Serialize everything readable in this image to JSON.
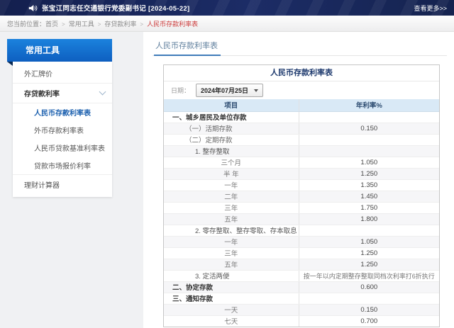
{
  "top_bar": {
    "announcement": "张宝江同志任交通银行党委副书记 [2024-05-22]",
    "more_link": "查看更多>>"
  },
  "breadcrumb": {
    "prefix": "您当前位置：",
    "items": [
      "首页",
      "常用工具",
      "存贷款利率"
    ],
    "separator": ">",
    "current": "人民币存款利率表"
  },
  "sidebar": {
    "title": "常用工具",
    "items": [
      {
        "label": "外汇牌价",
        "type": "top"
      },
      {
        "label": "存贷款利率",
        "type": "top",
        "expanded": true,
        "bold": true
      },
      {
        "label": "人民币存款利率表",
        "type": "sub",
        "active": true
      },
      {
        "label": "外币存款利率表",
        "type": "sub"
      },
      {
        "label": "人民币贷款基准利率表",
        "type": "sub"
      },
      {
        "label": "贷款市场报价利率",
        "type": "sub"
      },
      {
        "label": "理财计算器",
        "type": "top"
      }
    ]
  },
  "content": {
    "page_title": "人民币存款利率表",
    "table": {
      "caption": "人民币存款利率表",
      "date_label": "日期：",
      "date_value": "2024年07月25日",
      "columns": [
        "项目",
        "年利率%"
      ],
      "rows": [
        {
          "item": "一、城乡居民及单位存款",
          "rate": "",
          "level": 1
        },
        {
          "item": "（一）活期存款",
          "rate": "0.150",
          "level": 2
        },
        {
          "item": "（二）定期存款",
          "rate": "",
          "level": 2
        },
        {
          "item": "1. 整存整取",
          "rate": "",
          "level": 3
        },
        {
          "item": "三个月",
          "rate": "1.050",
          "level": 4
        },
        {
          "item": "半 年",
          "rate": "1.250",
          "level": 4
        },
        {
          "item": "一年",
          "rate": "1.350",
          "level": 4
        },
        {
          "item": "二年",
          "rate": "1.450",
          "level": 4
        },
        {
          "item": "三年",
          "rate": "1.750",
          "level": 4
        },
        {
          "item": "五年",
          "rate": "1.800",
          "level": 4
        },
        {
          "item": "2. 零存整取、整存零取、存本取息",
          "rate": "",
          "level": 3
        },
        {
          "item": "一年",
          "rate": "1.050",
          "level": 4
        },
        {
          "item": "三年",
          "rate": "1.250",
          "level": 4
        },
        {
          "item": "五年",
          "rate": "1.250",
          "level": 4
        },
        {
          "item": "3. 定活两便",
          "rate": "按一年以内定期整存整取同档次利率打6折执行",
          "level": 3,
          "note": true
        },
        {
          "item": "二、协定存款",
          "rate": "0.600",
          "level": 1
        },
        {
          "item": "三、通知存款",
          "rate": "",
          "level": 1
        },
        {
          "item": "一天",
          "rate": "0.150",
          "level": 4
        },
        {
          "item": "七天",
          "rate": "0.700",
          "level": 4
        }
      ]
    }
  },
  "colors": {
    "topbar_bg": "#16245a",
    "sidebar_header_blue": "#1177d6",
    "active_link_blue": "#1a5fae",
    "breadcrumb_current_red": "#cc3b3b",
    "table_header_bg": "#d9e9f6",
    "title_underline": "#3f7cba"
  }
}
